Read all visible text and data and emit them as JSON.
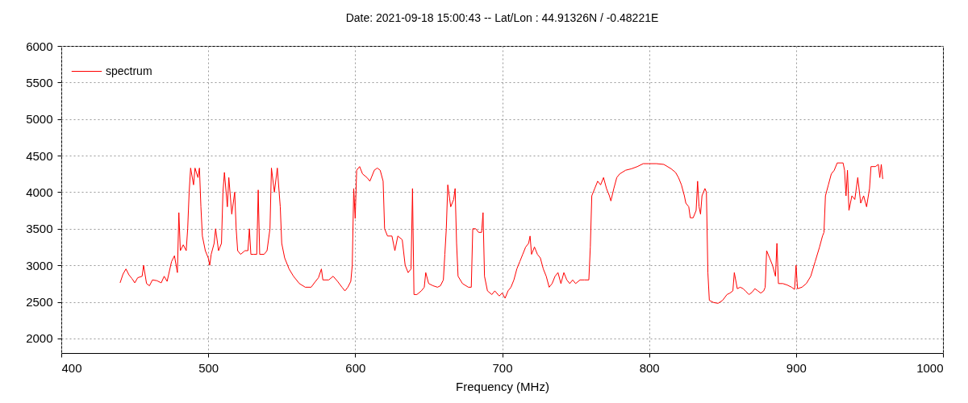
{
  "chart_data": {
    "type": "line",
    "title": "Date: 2021-09-18 15:00:43  --  Lat/Lon : 44.91326N / -0.48221E",
    "xlabel": "Frequency (MHz)",
    "xlim": [
      400,
      1000
    ],
    "xticks": [
      400,
      500,
      600,
      700,
      800,
      900,
      1000
    ],
    "ylim": [
      1800,
      6000
    ],
    "yticks": [
      2000,
      2500,
      3000,
      3500,
      4000,
      4500,
      5000,
      5500,
      6000
    ],
    "grid": true,
    "legend": "top left",
    "line_style": "solid",
    "x": [
      440,
      442,
      444,
      446,
      448,
      450,
      452,
      455,
      456,
      458,
      460,
      462,
      465,
      468,
      470,
      472,
      475,
      477,
      479,
      480,
      481,
      483,
      485,
      486,
      487,
      488,
      490,
      491,
      493,
      494,
      495,
      496,
      498,
      500,
      501,
      502,
      504,
      505,
      507,
      509,
      510,
      511,
      513,
      514,
      516,
      518,
      519,
      520,
      522,
      525,
      527,
      528,
      529,
      531,
      533,
      534,
      535,
      538,
      540,
      542,
      543,
      545,
      547,
      549,
      550,
      552,
      555,
      558,
      562,
      566,
      570,
      573,
      575,
      577,
      578,
      582,
      585,
      588,
      591,
      593,
      595,
      597,
      598,
      599,
      600,
      601,
      603,
      605,
      608,
      610,
      613,
      615,
      617,
      619,
      620,
      622,
      625,
      627,
      629,
      632,
      634,
      636,
      638,
      639,
      640,
      642,
      645,
      647,
      648,
      650,
      653,
      656,
      658,
      660,
      661,
      662,
      663,
      665,
      667,
      668,
      669,
      670,
      673,
      677,
      679,
      680,
      682,
      684,
      686,
      687,
      688,
      690,
      693,
      695,
      698,
      700,
      702,
      704,
      706,
      708,
      710,
      712,
      714,
      716,
      718,
      719,
      720,
      722,
      724,
      726,
      728,
      730,
      732,
      734,
      736,
      738,
      740,
      742,
      744,
      746,
      748,
      750,
      753,
      756,
      759,
      760,
      761,
      763,
      765,
      767,
      769,
      771,
      773,
      774,
      776,
      778,
      780,
      784,
      788,
      792,
      796,
      800,
      805,
      810,
      815,
      818,
      820,
      822,
      824,
      825,
      827,
      828,
      830,
      832,
      833,
      834,
      835,
      836,
      838,
      839,
      840,
      841,
      844,
      847,
      850,
      853,
      855,
      857,
      858,
      860,
      862,
      864,
      866,
      868,
      870,
      872,
      874,
      876,
      878,
      879,
      880,
      882,
      884,
      886,
      887,
      888,
      891,
      894,
      897,
      899,
      900,
      901,
      904,
      907,
      910,
      913,
      916,
      918,
      919,
      920,
      922,
      924,
      926,
      928,
      932,
      933,
      934,
      935,
      936,
      938,
      940,
      942,
      944,
      946,
      948,
      950,
      951,
      954,
      956,
      957,
      958,
      959
    ],
    "series": [
      {
        "name": "spectrum",
        "color": "#ff0000",
        "values": [
          2760,
          2880,
          2950,
          2870,
          2820,
          2760,
          2830,
          2850,
          3000,
          2750,
          2720,
          2800,
          2790,
          2760,
          2850,
          2780,
          3050,
          3130,
          2900,
          3720,
          3200,
          3280,
          3200,
          3500,
          4000,
          4330,
          4100,
          4330,
          4200,
          4330,
          3800,
          3400,
          3200,
          3100,
          3000,
          3150,
          3300,
          3500,
          3200,
          3300,
          4000,
          4270,
          3800,
          4200,
          3700,
          4000,
          3500,
          3200,
          3150,
          3200,
          3200,
          3500,
          3150,
          3150,
          3150,
          4030,
          3150,
          3150,
          3200,
          3500,
          4330,
          4000,
          4330,
          3800,
          3300,
          3100,
          2950,
          2850,
          2750,
          2700,
          2700,
          2780,
          2830,
          2950,
          2800,
          2800,
          2850,
          2780,
          2700,
          2650,
          2700,
          2780,
          3000,
          4050,
          3640,
          4300,
          4350,
          4250,
          4200,
          4150,
          4300,
          4330,
          4300,
          4150,
          3500,
          3400,
          3400,
          3200,
          3400,
          3350,
          3000,
          2900,
          2950,
          4050,
          2600,
          2600,
          2650,
          2700,
          2900,
          2750,
          2720,
          2700,
          2720,
          2800,
          3150,
          3500,
          4100,
          3800,
          3900,
          4050,
          3300,
          2850,
          2750,
          2700,
          2700,
          3500,
          3500,
          3450,
          3450,
          3720,
          2850,
          2650,
          2600,
          2650,
          2580,
          2620,
          2550,
          2650,
          2700,
          2800,
          2950,
          3050,
          3150,
          3250,
          3300,
          3400,
          3150,
          3250,
          3150,
          3100,
          2950,
          2850,
          2700,
          2750,
          2850,
          2900,
          2750,
          2900,
          2800,
          2750,
          2800,
          2750,
          2800,
          2800,
          2800,
          3250,
          3950,
          4050,
          4150,
          4100,
          4200,
          4050,
          3950,
          3880,
          4050,
          4200,
          4250,
          4300,
          4320,
          4350,
          4390,
          4390,
          4390,
          4380,
          4320,
          4270,
          4200,
          4100,
          3950,
          3850,
          3800,
          3650,
          3650,
          3750,
          4150,
          3800,
          3700,
          3950,
          4050,
          4000,
          2900,
          2520,
          2490,
          2480,
          2520,
          2600,
          2620,
          2650,
          2900,
          2680,
          2700,
          2680,
          2640,
          2600,
          2630,
          2680,
          2650,
          2620,
          2650,
          2700,
          3200,
          3100,
          3000,
          2850,
          3300,
          2750,
          2750,
          2730,
          2700,
          2670,
          3000,
          2680,
          2700,
          2750,
          2850,
          3050,
          3250,
          3400,
          3450,
          3950,
          4100,
          4250,
          4300,
          4400,
          4400,
          4300,
          3950,
          4300,
          3750,
          3950,
          3900,
          4200,
          3850,
          3950,
          3800,
          4050,
          4350,
          4350,
          4380,
          4200,
          4380,
          4180
        ]
      }
    ]
  }
}
